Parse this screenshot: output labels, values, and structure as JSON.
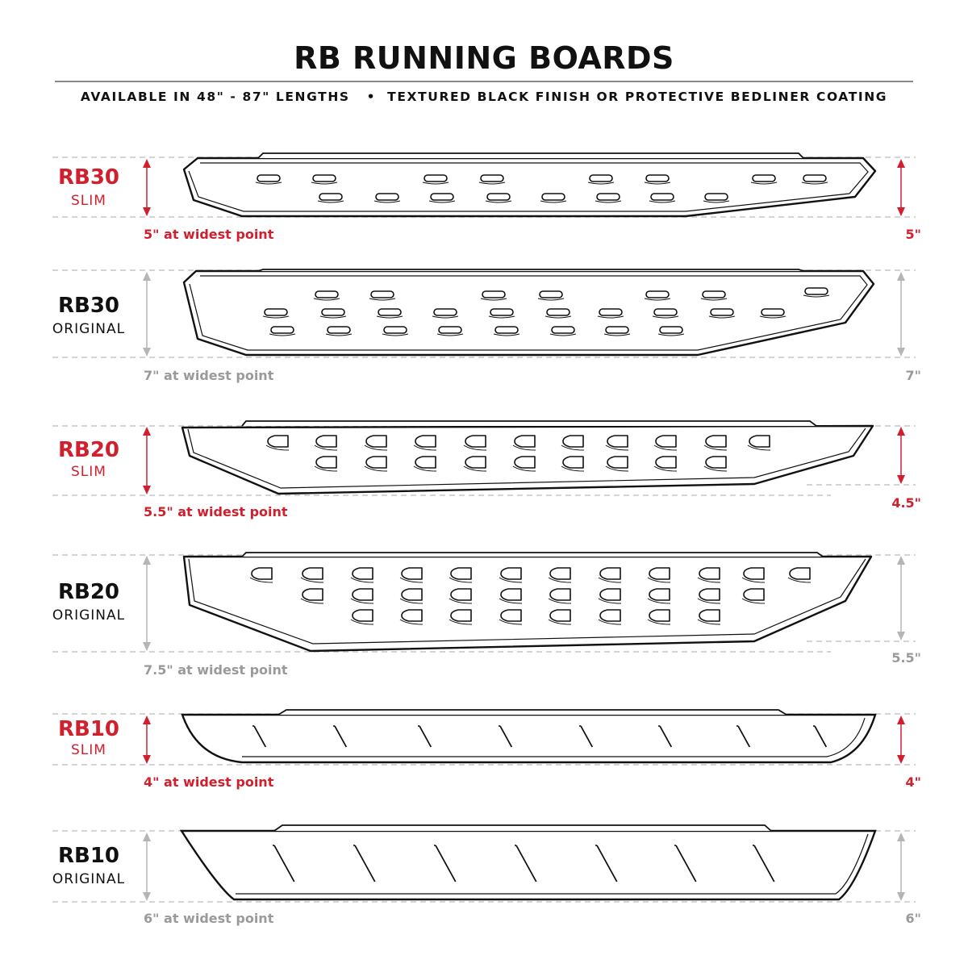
{
  "title": "RB RUNNING BOARDS",
  "subtitle": "AVAILABLE IN 48\" - 87\" LENGTHS   •  TEXTURED BLACK FINISH OR PROTECTIVE BEDLINER COATING",
  "colors": {
    "accent": "#d0202e",
    "muted": "#9a9a9a",
    "ink": "#111111"
  },
  "models": [
    {
      "name": "RB30",
      "variant": "SLIM",
      "widest": "5\" at widest point",
      "height": "5\"",
      "highlight": true
    },
    {
      "name": "RB30",
      "variant": "ORIGINAL",
      "widest": "7\" at widest point",
      "height": "7\"",
      "highlight": false
    },
    {
      "name": "RB20",
      "variant": "SLIM",
      "widest": "5.5\" at widest point",
      "height": "4.5\"",
      "highlight": true
    },
    {
      "name": "RB20",
      "variant": "ORIGINAL",
      "widest": "7.5\" at widest point",
      "height": "5.5\"",
      "highlight": false
    },
    {
      "name": "RB10",
      "variant": "SLIM",
      "widest": "4\" at widest point",
      "height": "4\"",
      "highlight": true
    },
    {
      "name": "RB10",
      "variant": "ORIGINAL",
      "widest": "6\" at widest point",
      "height": "6\"",
      "highlight": false
    }
  ]
}
